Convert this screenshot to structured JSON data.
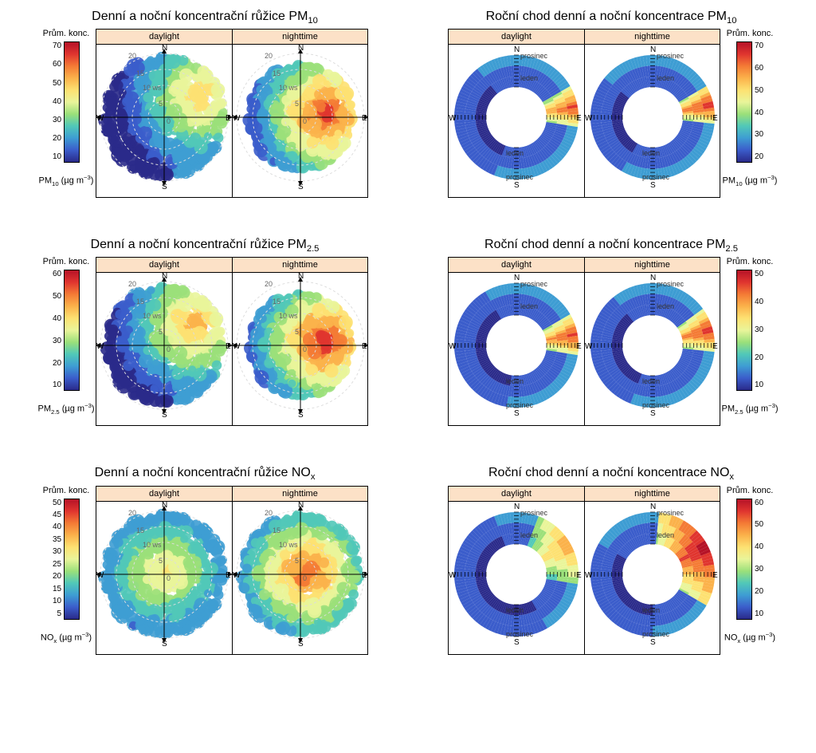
{
  "colormap": {
    "stops": [
      "#2a2a8a",
      "#3b5dcb",
      "#3e9dd3",
      "#51c8b8",
      "#9be07a",
      "#e9f59a",
      "#fde172",
      "#fbb24b",
      "#f47b35",
      "#e0352f",
      "#b51227"
    ]
  },
  "rows": [
    {
      "left": {
        "title": "Denní a noční koncentrační růžice PM₁₀",
        "legend": {
          "label": "Prům. konc.",
          "ticks": [
            "70",
            "60",
            "50",
            "40",
            "30",
            "20",
            "10"
          ],
          "unit": "PM₁₀ (µg m⁻³)",
          "position": "left"
        },
        "panels": [
          {
            "strip": "daylight",
            "type": "rose",
            "rings": {
              "values": [
                0,
                5,
                10,
                15,
                20
              ],
              "label": "10 ws"
            },
            "compass": [
              "N",
              "E",
              "S",
              "W"
            ],
            "hotspot": {
              "angle": 60,
              "r": 0.65,
              "intensity": 0.72
            },
            "base_color": "#3b6fc7",
            "spread": 0.95
          },
          {
            "strip": "nighttime",
            "type": "rose",
            "rings": {
              "values": [
                0,
                5,
                10,
                15,
                20
              ],
              "label": "10 ws"
            },
            "compass": [
              "N",
              "E",
              "S",
              "W"
            ],
            "hotspot": {
              "angle": 80,
              "r": 0.4,
              "intensity": 0.98
            },
            "base_color": "#3b6fc7",
            "spread": 0.82
          }
        ]
      },
      "right": {
        "title": "Roční chod denní a noční koncentrace PM₁₀",
        "legend": {
          "label": "Prům. konc.",
          "ticks": [
            "70",
            "60",
            "50",
            "40",
            "30",
            "20"
          ],
          "unit": "PM₁₀ (µg m⁻³)",
          "position": "right"
        },
        "panels": [
          {
            "strip": "daylight",
            "type": "annulus",
            "compass": [
              "N",
              "E",
              "S",
              "W"
            ],
            "month_labels": [
              "prosinec",
              "leden",
              "leden",
              "prosinec"
            ],
            "hot_arc": {
              "start": 60,
              "end": 100,
              "intensity": 0.85
            },
            "cool_arc": {
              "start": 200,
              "end": 320
            }
          },
          {
            "strip": "nighttime",
            "type": "annulus",
            "compass": [
              "N",
              "E",
              "S",
              "W"
            ],
            "month_labels": [
              "prosinec",
              "leden",
              "leden",
              "prosinec"
            ],
            "hot_arc": {
              "start": 60,
              "end": 95,
              "intensity": 0.92
            },
            "cool_arc": {
              "start": 210,
              "end": 310
            }
          }
        ]
      }
    },
    {
      "left": {
        "title": "Denní a noční koncentrační růžice PM₂.₅",
        "legend": {
          "label": "Prům. konc.",
          "ticks": [
            "60",
            "50",
            "40",
            "30",
            "20",
            "10"
          ],
          "unit": "PM₂.₅ (µg m⁻³)",
          "position": "left"
        },
        "panels": [
          {
            "strip": "daylight",
            "type": "rose",
            "rings": {
              "values": [
                0,
                5,
                10,
                15,
                20
              ],
              "label": "10 ws"
            },
            "compass": [
              "N",
              "E",
              "S",
              "W"
            ],
            "hotspot": {
              "angle": 55,
              "r": 0.58,
              "intensity": 0.78
            },
            "base_color": "#3b6fc7",
            "spread": 0.92
          },
          {
            "strip": "nighttime",
            "type": "rose",
            "rings": {
              "values": [
                0,
                5,
                10,
                15,
                20
              ],
              "label": "10 ws"
            },
            "compass": [
              "N",
              "E",
              "S",
              "W"
            ],
            "hotspot": {
              "angle": 80,
              "r": 0.38,
              "intensity": 1.0
            },
            "base_color": "#3b6fc7",
            "spread": 0.8
          }
        ]
      },
      "right": {
        "title": "Roční chod denní a noční koncentrace PM₂.₅",
        "legend": {
          "label": "Prům. konc.",
          "ticks": [
            "50",
            "40",
            "30",
            "20",
            "10"
          ],
          "unit": "PM₂.₅ (µg m⁻³)",
          "position": "right"
        },
        "panels": [
          {
            "strip": "daylight",
            "type": "annulus",
            "compass": [
              "N",
              "E",
              "S",
              "W"
            ],
            "month_labels": [
              "prosinec",
              "leden",
              "leden",
              "prosinec"
            ],
            "hot_arc": {
              "start": 60,
              "end": 100,
              "intensity": 0.88
            },
            "cool_arc": {
              "start": 190,
              "end": 330
            }
          },
          {
            "strip": "nighttime",
            "type": "annulus",
            "compass": [
              "N",
              "E",
              "S",
              "W"
            ],
            "month_labels": [
              "prosinec",
              "leden",
              "leden",
              "prosinec"
            ],
            "hot_arc": {
              "start": 55,
              "end": 95,
              "intensity": 0.9
            },
            "cool_arc": {
              "start": 200,
              "end": 320
            }
          }
        ]
      }
    },
    {
      "left": {
        "title": "Denní a noční koncentrační růžice NOₓ",
        "legend": {
          "label": "Prům. konc.",
          "ticks": [
            "50",
            "45",
            "40",
            "35",
            "30",
            "25",
            "20",
            "15",
            "10",
            "5"
          ],
          "unit": "NOₓ (µg m⁻³)",
          "position": "left"
        },
        "panels": [
          {
            "strip": "daylight",
            "type": "rose",
            "rings": {
              "values": [
                0,
                5,
                10,
                15,
                20
              ],
              "label": "10 ws"
            },
            "compass": [
              "N",
              "E",
              "S",
              "W"
            ],
            "hotspot": {
              "angle": 0,
              "r": 0.05,
              "intensity": 0.65
            },
            "base_color": "#3560bf",
            "spread": 0.95
          },
          {
            "strip": "nighttime",
            "type": "rose",
            "rings": {
              "values": [
                0,
                5,
                10,
                15,
                20
              ],
              "label": "10 ws"
            },
            "compass": [
              "N",
              "E",
              "S",
              "W"
            ],
            "hotspot": {
              "angle": 75,
              "r": 0.1,
              "intensity": 0.92
            },
            "base_color": "#3560bf",
            "spread": 0.93
          }
        ]
      },
      "right": {
        "title": "Roční chod denní a noční koncentrace NOₓ",
        "legend": {
          "label": "Prům. konc.",
          "ticks": [
            "60",
            "50",
            "40",
            "30",
            "20",
            "10"
          ],
          "unit": "NOₓ (µg m⁻³)",
          "position": "right"
        },
        "panels": [
          {
            "strip": "daylight",
            "type": "annulus",
            "compass": [
              "N",
              "E",
              "S",
              "W"
            ],
            "month_labels": [
              "prosinec",
              "leden",
              "leden",
              "prosinec"
            ],
            "hot_arc": {
              "start": 20,
              "end": 100,
              "intensity": 0.7
            },
            "cool_arc": {
              "start": 150,
              "end": 340
            }
          },
          {
            "strip": "nighttime",
            "type": "annulus",
            "compass": [
              "N",
              "E",
              "S",
              "W"
            ],
            "month_labels": [
              "prosinec",
              "leden",
              "leden",
              "prosinec"
            ],
            "hot_arc": {
              "start": 5,
              "end": 120,
              "intensity": 0.98
            },
            "cool_arc": {
              "start": 180,
              "end": 300
            }
          }
        ]
      }
    }
  ]
}
